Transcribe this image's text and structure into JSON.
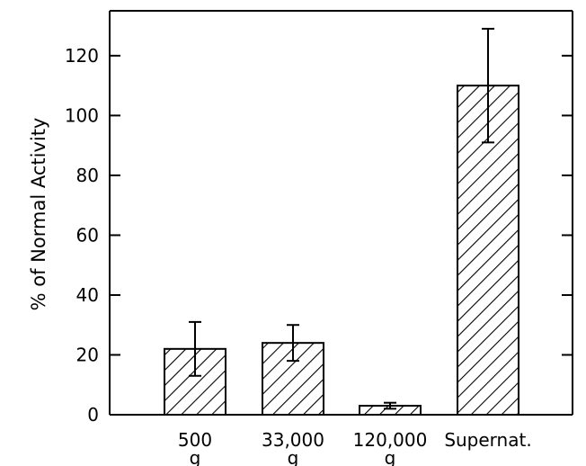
{
  "chart_data": {
    "type": "bar",
    "ylabel": "% of Normal Activity",
    "xlabel": "",
    "ylim": [
      0,
      135
    ],
    "yticks": [
      0,
      20,
      40,
      60,
      80,
      100,
      120
    ],
    "categories": [
      {
        "line1": "500",
        "line2": "g"
      },
      {
        "line1": "33,000",
        "line2": "g"
      },
      {
        "line1": "120,000",
        "line2": "g"
      },
      {
        "line1": "Supernat.",
        "line2": ""
      }
    ],
    "values": [
      22,
      24,
      3,
      110
    ],
    "error_low": [
      13,
      18,
      2,
      91
    ],
    "error_high": [
      31,
      30,
      4,
      129
    ],
    "bar_fill": "hatched",
    "grid": false,
    "legend": "none"
  }
}
